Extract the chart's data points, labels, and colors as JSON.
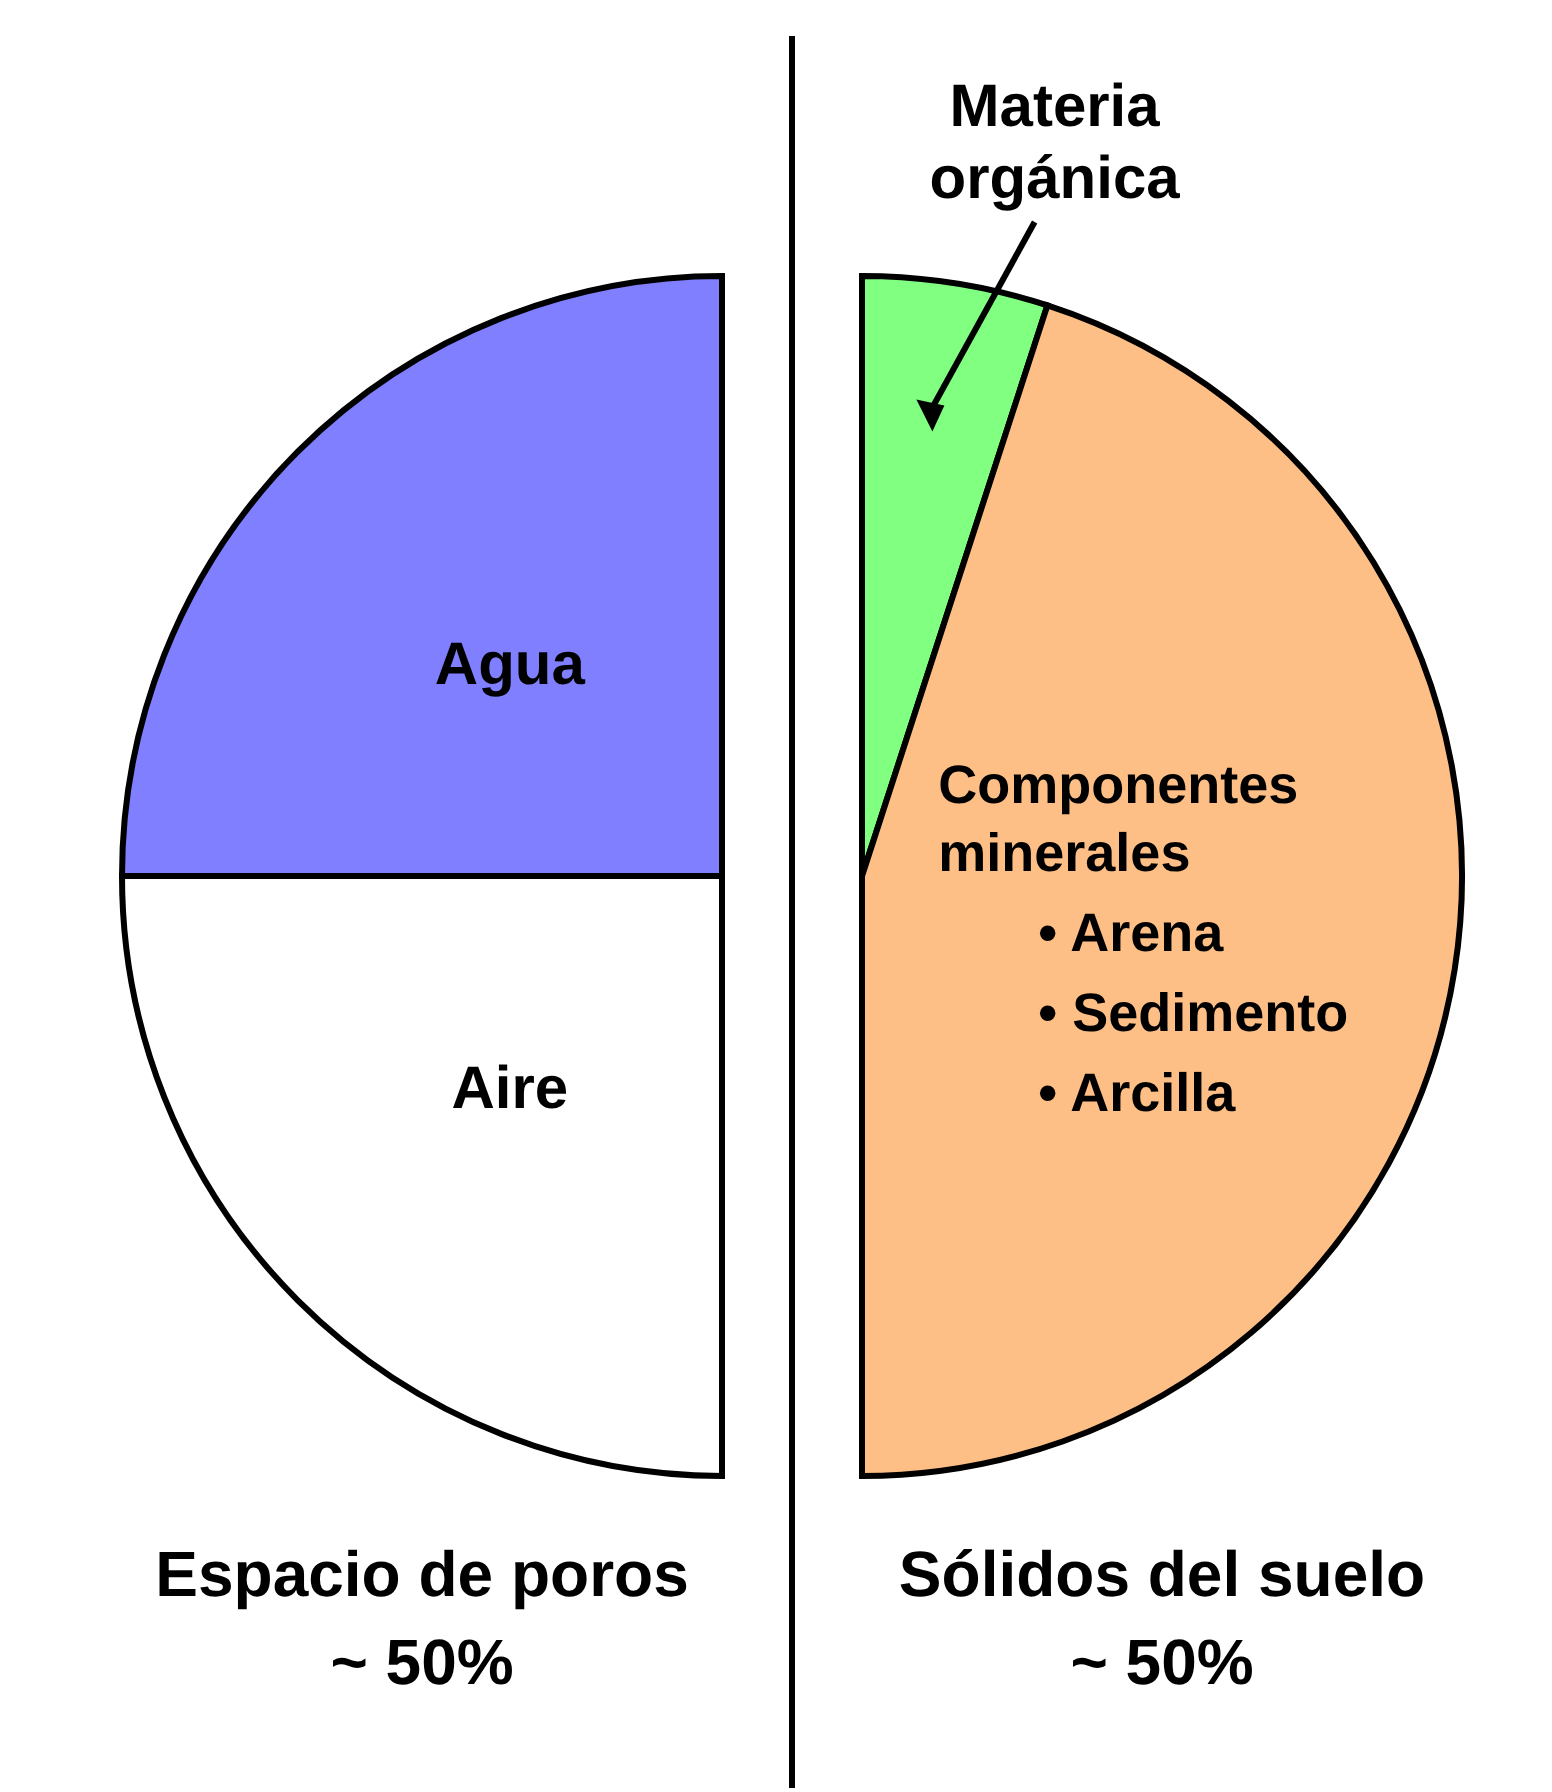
{
  "chart_data": {
    "type": "pie",
    "categories": [
      "Materia orgánica",
      "Componentes minerales",
      "Aire",
      "Agua"
    ],
    "values": [
      5,
      45,
      25,
      25
    ],
    "colors": [
      "#80ff80",
      "#fdbf85",
      "#ffffff",
      "#7f7fff"
    ],
    "annotations": [
      "Espacio de poros\n~ 50%",
      "Sólidos del suelo\n~ 50%",
      "• Arena",
      "• Sedimento",
      "• Arcilla"
    ]
  }
}
